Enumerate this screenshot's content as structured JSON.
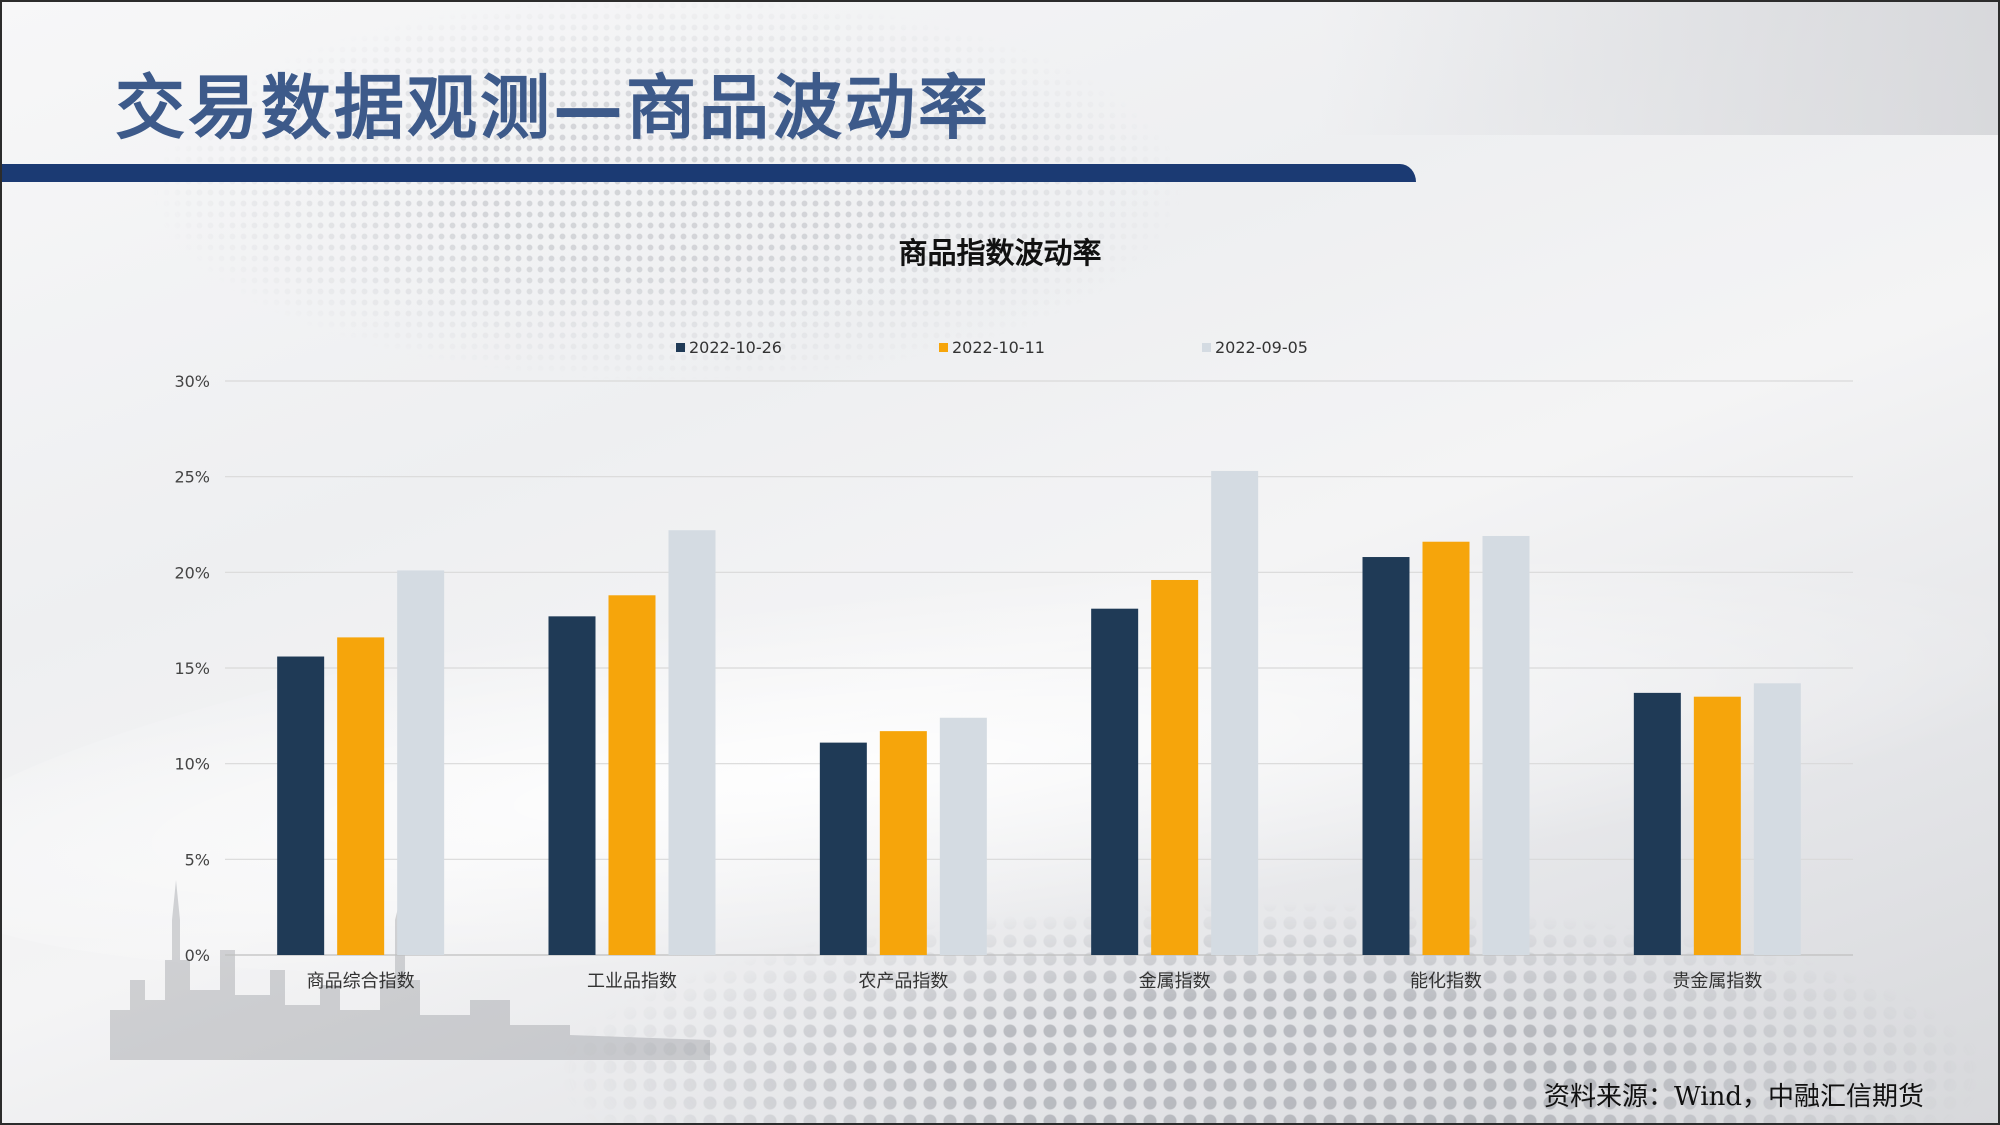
{
  "page": {
    "title": "交易数据观测—商品波动率",
    "source": "资料来源：Wind，中融汇信期货"
  },
  "colors": {
    "header_bar": "#1b3a73",
    "title_text": "#3d5a8a",
    "series": [
      "#1f3a56",
      "#f6a50b",
      "#d4dbe2"
    ]
  },
  "chart_data": {
    "type": "bar",
    "title": "商品指数波动率",
    "xlabel": "",
    "ylabel": "",
    "categories": [
      "商品综合指数",
      "工业品指数",
      "农产品指数",
      "金属指数",
      "能化指数",
      "贵金属指数"
    ],
    "series": [
      {
        "name": "2022-10-26",
        "values": [
          15.6,
          17.7,
          11.1,
          18.1,
          20.8,
          13.7
        ]
      },
      {
        "name": "2022-10-11",
        "values": [
          16.6,
          18.8,
          11.7,
          19.6,
          21.6,
          13.5
        ]
      },
      {
        "name": "2022-09-05",
        "values": [
          20.1,
          22.2,
          12.4,
          25.3,
          21.9,
          14.2
        ]
      }
    ],
    "ylim": [
      0,
      30
    ],
    "yticks": [
      "0%",
      "5%",
      "10%",
      "15%",
      "20%",
      "25%",
      "30%"
    ],
    "ytick_values": [
      0,
      5,
      10,
      15,
      20,
      25,
      30
    ],
    "grid": true,
    "legend_position": "top"
  }
}
